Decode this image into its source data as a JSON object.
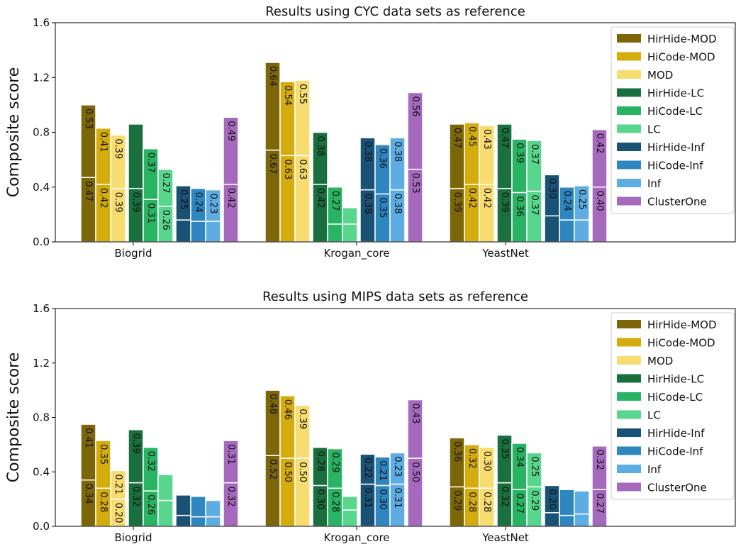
{
  "chart_data": [
    {
      "type": "bar",
      "stacked": true,
      "title": "Results using CYC data sets as reference",
      "ylabel": "Composite score",
      "categories": [
        "Biogrid",
        "Krogan_core",
        "YeastNet"
      ],
      "ylim": [
        0,
        1.6
      ],
      "yticks": [
        {
          "value": 0,
          "label": "0.0"
        },
        0.4,
        0.8,
        1.2,
        1.6
      ],
      "legend": "upper right",
      "series": [
        {
          "name": "HirHide-MOD",
          "color": "#7d6608",
          "values": [
            [
              0.47,
              0.53
            ],
            [
              0.67,
              0.64
            ],
            [
              0.39,
              0.47
            ]
          ],
          "value_labels": [
            [
              "0.47",
              "0.53"
            ],
            [
              "0.67",
              "0.64"
            ],
            [
              "0.39",
              "0.47"
            ]
          ]
        },
        {
          "name": "HiCode-MOD",
          "color": "#d4ac0d",
          "values": [
            [
              0.42,
              0.41
            ],
            [
              0.63,
              0.54
            ],
            [
              0.42,
              0.45
            ]
          ],
          "value_labels": [
            [
              "0.42",
              "0.41"
            ],
            [
              "0.63",
              "0.54"
            ],
            [
              "0.42",
              "0.45"
            ]
          ]
        },
        {
          "name": "MOD",
          "color": "#f7dc6f",
          "values": [
            [
              0.39,
              0.39
            ],
            [
              0.63,
              0.55
            ],
            [
              0.42,
              0.43
            ]
          ],
          "value_labels": [
            [
              "0.39",
              "0.39"
            ],
            [
              "0.63",
              "0.55"
            ],
            [
              "0.42",
              "0.43"
            ]
          ]
        },
        {
          "name": "HirHide-LC",
          "color": "#196f3d",
          "values": [
            [
              0.39,
              0.47
            ],
            [
              0.42,
              0.38
            ],
            [
              0.39,
              0.47
            ]
          ],
          "value_labels": [
            [
              "0.39",
              null
            ],
            [
              "0.42",
              "0.38"
            ],
            [
              "0.39",
              "0.47"
            ]
          ]
        },
        {
          "name": "HiCode-LC",
          "color": "#28b463",
          "values": [
            [
              0.31,
              0.37
            ],
            [
              0.13,
              0.27
            ],
            [
              0.36,
              0.39
            ]
          ],
          "value_labels": [
            [
              "0.31",
              "0.37"
            ],
            [
              null,
              "0.27"
            ],
            [
              "0.36",
              "0.39"
            ]
          ]
        },
        {
          "name": "LC",
          "color": "#58d68d",
          "values": [
            [
              0.26,
              0.27
            ],
            [
              0.13,
              0.12
            ],
            [
              0.37,
              0.37
            ]
          ],
          "value_labels": [
            [
              "0.26",
              "0.27"
            ],
            [
              null,
              null
            ],
            [
              "0.37",
              "0.37"
            ]
          ]
        },
        {
          "name": "HirHide-Inf",
          "color": "#1a5276",
          "values": [
            [
              0.16,
              0.25
            ],
            [
              0.38,
              0.38
            ],
            [
              0.19,
              0.3
            ]
          ],
          "value_labels": [
            [
              null,
              "0.25"
            ],
            [
              "0.38",
              "0.38"
            ],
            [
              null,
              "0.30"
            ]
          ]
        },
        {
          "name": "HiCode-Inf",
          "color": "#2e86c1",
          "values": [
            [
              0.15,
              0.24
            ],
            [
              0.35,
              0.36
            ],
            [
              0.16,
              0.24
            ]
          ],
          "value_labels": [
            [
              null,
              "0.24"
            ],
            [
              "0.35",
              "0.36"
            ],
            [
              null,
              "0.24"
            ]
          ]
        },
        {
          "name": "Inf",
          "color": "#5dade2",
          "values": [
            [
              0.15,
              0.23
            ],
            [
              0.38,
              0.38
            ],
            [
              0.16,
              0.25
            ]
          ],
          "value_labels": [
            [
              null,
              "0.23"
            ],
            [
              "0.38",
              "0.38"
            ],
            [
              null,
              "0.25"
            ]
          ]
        },
        {
          "name": "ClusterOne",
          "color": "#a569bd",
          "values": [
            [
              0.42,
              0.49
            ],
            [
              0.53,
              0.56
            ],
            [
              0.4,
              0.42
            ]
          ],
          "value_labels": [
            [
              "0.42",
              "0.49"
            ],
            [
              "0.53",
              "0.56"
            ],
            [
              "0.40",
              "0.42"
            ]
          ]
        }
      ]
    },
    {
      "type": "bar",
      "stacked": true,
      "title": "Results using MIPS data sets as reference",
      "ylabel": "Composite score",
      "categories": [
        "Biogrid",
        "Krogan_core",
        "YeastNet"
      ],
      "ylim": [
        0,
        1.6
      ],
      "yticks": [
        {
          "value": 0,
          "label": "0.0"
        },
        0.4,
        0.8,
        1.2,
        1.6
      ],
      "legend": "upper right",
      "series": [
        {
          "name": "HirHide-MOD",
          "color": "#7d6608",
          "values": [
            [
              0.34,
              0.41
            ],
            [
              0.52,
              0.48
            ],
            [
              0.29,
              0.36
            ]
          ],
          "value_labels": [
            [
              "0.34",
              "0.41"
            ],
            [
              "0.52",
              "0.48"
            ],
            [
              "0.29",
              "0.36"
            ]
          ]
        },
        {
          "name": "HiCode-MOD",
          "color": "#d4ac0d",
          "values": [
            [
              0.28,
              0.35
            ],
            [
              0.5,
              0.46
            ],
            [
              0.28,
              0.32
            ]
          ],
          "value_labels": [
            [
              "0.28",
              "0.35"
            ],
            [
              "0.50",
              "0.46"
            ],
            [
              "0.28",
              "0.32"
            ]
          ]
        },
        {
          "name": "MOD",
          "color": "#f7dc6f",
          "values": [
            [
              0.2,
              0.21
            ],
            [
              0.5,
              0.39
            ],
            [
              0.28,
              0.3
            ]
          ],
          "value_labels": [
            [
              "0.20",
              "0.21"
            ],
            [
              "0.50",
              "0.39"
            ],
            [
              "0.28",
              "0.30"
            ]
          ]
        },
        {
          "name": "HirHide-LC",
          "color": "#196f3d",
          "values": [
            [
              0.32,
              0.39
            ],
            [
              0.3,
              0.28
            ],
            [
              0.32,
              0.35
            ]
          ],
          "value_labels": [
            [
              "0.32",
              "0.39"
            ],
            [
              "0.30",
              "0.28"
            ],
            [
              "0.32",
              "0.35"
            ]
          ]
        },
        {
          "name": "HiCode-LC",
          "color": "#28b463",
          "values": [
            [
              0.26,
              0.32
            ],
            [
              0.28,
              0.29
            ],
            [
              0.27,
              0.34
            ]
          ],
          "value_labels": [
            [
              "0.26",
              "0.32"
            ],
            [
              "0.28",
              "0.29"
            ],
            [
              "0.27",
              "0.34"
            ]
          ]
        },
        {
          "name": "LC",
          "color": "#58d68d",
          "values": [
            [
              0.19,
              0.19
            ],
            [
              0.12,
              0.1
            ],
            [
              0.29,
              0.25
            ]
          ],
          "value_labels": [
            [
              null,
              null
            ],
            [
              null,
              null
            ],
            [
              "0.29",
              "0.25"
            ]
          ]
        },
        {
          "name": "HirHide-Inf",
          "color": "#1a5276",
          "values": [
            [
              0.08,
              0.15
            ],
            [
              0.31,
              0.22
            ],
            [
              0.1,
              0.2
            ]
          ],
          "value_labels": [
            [
              null,
              null
            ],
            [
              "0.31",
              "0.22"
            ],
            [
              null,
              "0.20"
            ]
          ]
        },
        {
          "name": "HiCode-Inf",
          "color": "#2e86c1",
          "values": [
            [
              0.07,
              0.15
            ],
            [
              0.3,
              0.21
            ],
            [
              0.08,
              0.19
            ]
          ],
          "value_labels": [
            [
              null,
              null
            ],
            [
              "0.30",
              "0.21"
            ],
            [
              null,
              null
            ]
          ]
        },
        {
          "name": "Inf",
          "color": "#5dade2",
          "values": [
            [
              0.07,
              0.12
            ],
            [
              0.31,
              0.23
            ],
            [
              0.09,
              0.17
            ]
          ],
          "value_labels": [
            [
              null,
              null
            ],
            [
              "0.31",
              "0.23"
            ],
            [
              null,
              null
            ]
          ]
        },
        {
          "name": "ClusterOne",
          "color": "#a569bd",
          "values": [
            [
              0.32,
              0.31
            ],
            [
              0.5,
              0.43
            ],
            [
              0.27,
              0.32
            ]
          ],
          "value_labels": [
            [
              "0.32",
              "0.31"
            ],
            [
              "0.50",
              "0.43"
            ],
            [
              "0.27",
              "0.32"
            ]
          ]
        }
      ]
    }
  ]
}
